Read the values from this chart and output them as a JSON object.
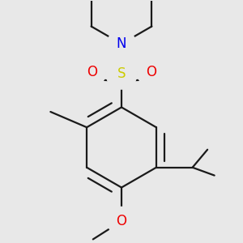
{
  "bg_color": "#e8e8e8",
  "bond_color": "#1a1a1a",
  "bond_width": 1.6,
  "atom_colors": {
    "N": "#0000ee",
    "O": "#ee0000",
    "S": "#cccc00",
    "C": "#1a1a1a"
  }
}
